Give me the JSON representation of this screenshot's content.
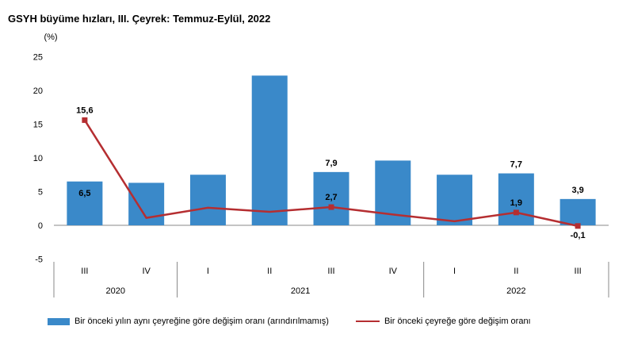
{
  "title": "GSYH büyüme hızları, III. Çeyrek: Temmuz-Eylül, 2022",
  "colors": {
    "bar": "#3a89c9",
    "line": "#b52e31",
    "axis": "#888888"
  },
  "chart_data": {
    "type": "bar",
    "title": "GSYH büyüme hızları, III. Çeyrek: Temmuz-Eylül, 2022",
    "ylabel": "(%)",
    "ylim": [
      -5,
      25
    ],
    "yticks": [
      -5,
      0,
      5,
      10,
      15,
      20,
      25
    ],
    "categories": [
      "III",
      "IV",
      "I",
      "II",
      "III",
      "IV",
      "I",
      "II",
      "III"
    ],
    "years": [
      {
        "label": "2020",
        "start": 0,
        "end": 1
      },
      {
        "label": "2021",
        "start": 2,
        "end": 5
      },
      {
        "label": "2022",
        "start": 6,
        "end": 8
      }
    ],
    "series": [
      {
        "name": "Bir önceki yılın aynı çeyreğine göre değişim oranı (arındırılmamış)",
        "type": "bar",
        "values": [
          6.5,
          6.3,
          7.5,
          22.2,
          7.9,
          9.6,
          7.5,
          7.7,
          3.9
        ],
        "labels": [
          "6,5",
          "",
          "",
          "",
          "7,9",
          "",
          "",
          "7,7",
          "3,9"
        ]
      },
      {
        "name": "Bir önceki çeyreğe göre değişim oranı",
        "type": "line",
        "values": [
          15.6,
          1.1,
          2.6,
          2.0,
          2.7,
          1.6,
          0.6,
          1.9,
          -0.1
        ],
        "labels": [
          "15,6",
          "",
          "",
          "",
          "2,7",
          "",
          "",
          "1,9",
          "-0,1"
        ]
      }
    ],
    "grid": false,
    "legend": "bottom"
  }
}
